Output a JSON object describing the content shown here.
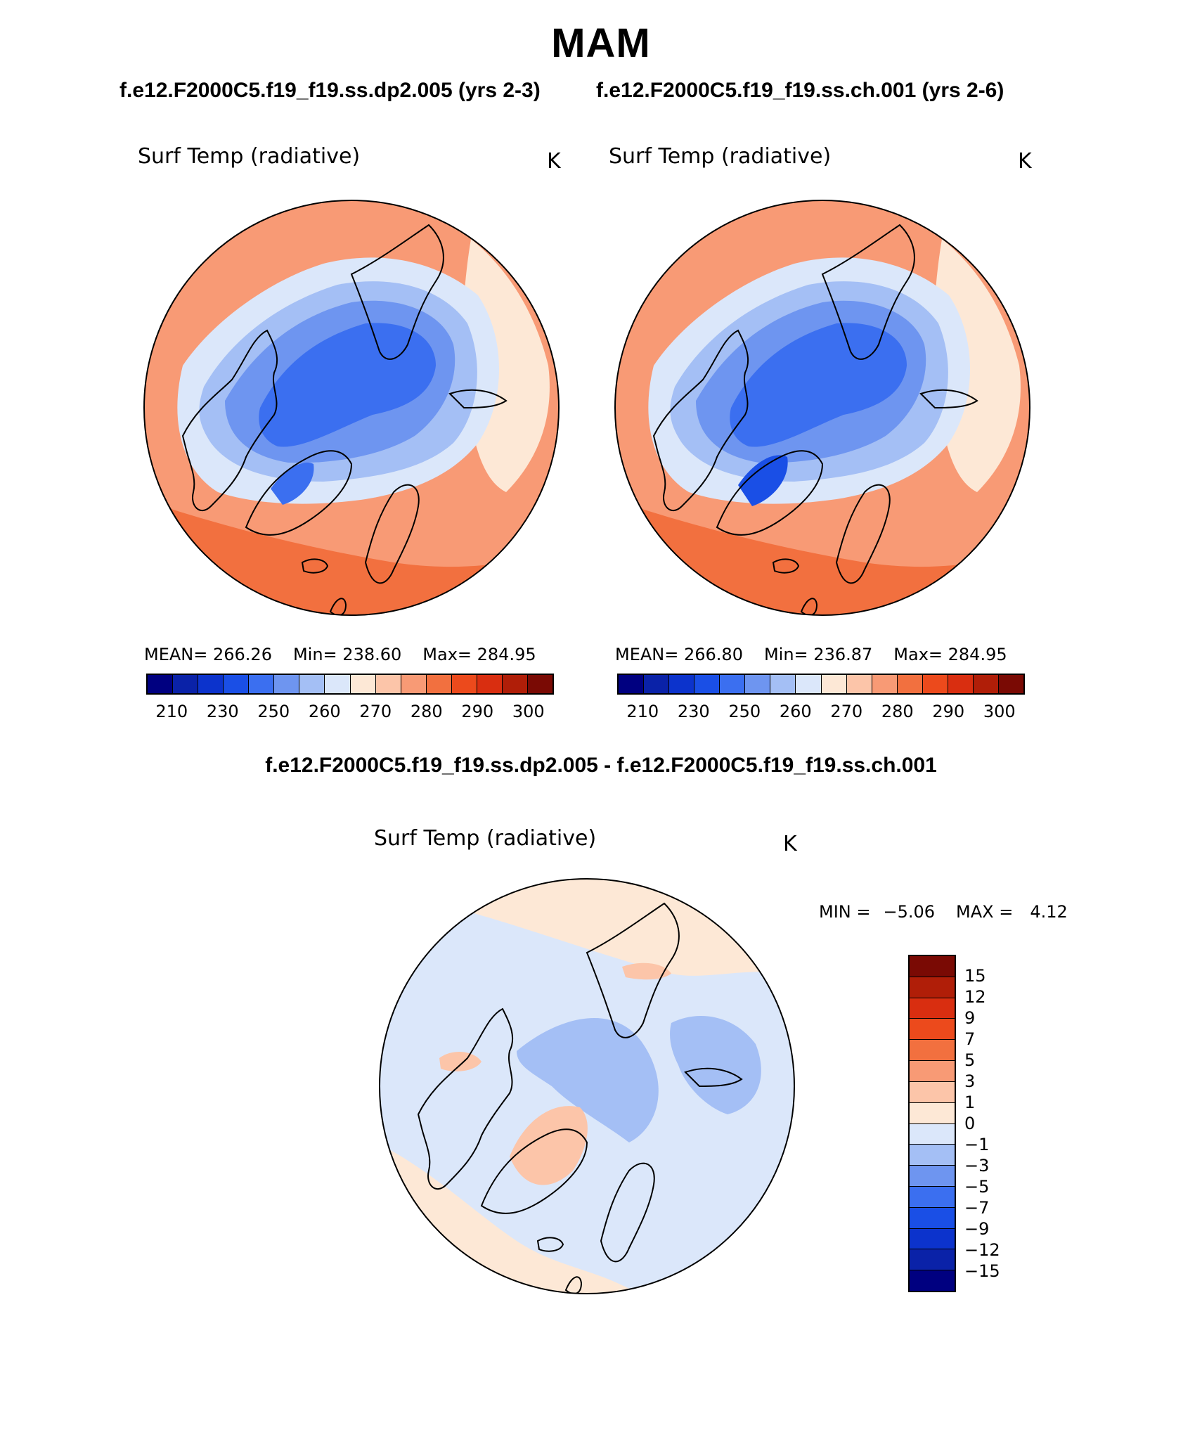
{
  "page_title": "MAM",
  "subtitles": {
    "left": "f.e12.F2000C5.f19_f19.ss.dp2.005 (yrs 2-3)",
    "right": "f.e12.F2000C5.f19_f19.ss.ch.001 (yrs 2-6)",
    "diff": "f.e12.F2000C5.f19_f19.ss.dp2.005 - f.e12.F2000C5.f19_f19.ss.ch.001"
  },
  "panels": {
    "left": {
      "variable": "Surf Temp (radiative)",
      "units": "K",
      "stats": {
        "mean": "MEAN= 266.26",
        "min": "Min= 238.60",
        "max": "Max= 284.95"
      }
    },
    "right": {
      "variable": "Surf Temp (radiative)",
      "units": "K",
      "stats": {
        "mean": "MEAN= 266.80",
        "min": "Min= 236.87",
        "max": "Max= 284.95"
      }
    },
    "diff": {
      "variable": "Surf Temp (radiative)",
      "units": "K",
      "min_label": "MIN =",
      "min_value": "−5.06",
      "max_label": "MAX =",
      "max_value": "4.12"
    }
  },
  "colorbar_abs": {
    "colors": [
      "#000080",
      "#0a22a8",
      "#0c33cc",
      "#1a4fe6",
      "#3b6ff0",
      "#6e95f0",
      "#a4bff5",
      "#dbe7fa",
      "#fde8d6",
      "#fcc5a9",
      "#f89a75",
      "#f2703f",
      "#ec4a1c",
      "#d92e10",
      "#b01e08",
      "#7a0a04"
    ],
    "ticks": [
      "210",
      "230",
      "250",
      "260",
      "270",
      "280",
      "290",
      "300"
    ]
  },
  "colorbar_diff": {
    "colors": [
      "#7a0a04",
      "#b01e08",
      "#d92e10",
      "#ec4a1c",
      "#f2703f",
      "#f89a75",
      "#fcc5a9",
      "#fde8d6",
      "#dbe7fa",
      "#a4bff5",
      "#6e95f0",
      "#3b6ff0",
      "#1a4fe6",
      "#0c33cc",
      "#0a22a8",
      "#000080"
    ],
    "ticks": [
      "15",
      "12",
      "9",
      "7",
      "5",
      "3",
      "1",
      "0",
      "−1",
      "−3",
      "−5",
      "−7",
      "−9",
      "−12",
      "−15"
    ]
  },
  "map_colors": {
    "warm_outer": "#f2703f",
    "warm_mid": "#f89a75",
    "warm_light": "#fcc5a9",
    "neutral_warm": "#fde8d6",
    "neutral_cool": "#dbe7fa",
    "cool_light": "#a4bff5",
    "cool_mid": "#6e95f0",
    "cool_deep": "#3b6ff0",
    "cool_deepest": "#1a4fe6"
  }
}
